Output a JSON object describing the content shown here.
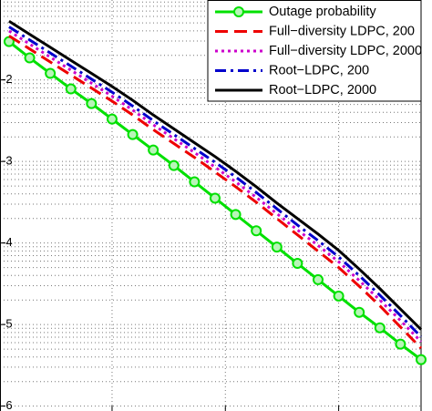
{
  "chart_data": {
    "type": "line",
    "x": [
      0,
      1,
      2,
      3,
      4,
      5,
      6,
      7,
      8,
      9,
      10,
      11,
      12,
      13,
      14,
      15,
      16,
      17,
      18,
      19,
      20
    ],
    "xlim": [
      -0.44,
      20
    ],
    "xticks": [
      5,
      10.5,
      16
    ],
    "ylim": [
      -6.06,
      -1.02
    ],
    "yticks": [
      -2,
      -3,
      -4,
      -5,
      -6
    ],
    "grid": true,
    "minor_grid": true,
    "legend": "upper right",
    "series": [
      {
        "name": "Outage probability",
        "color": "#00e000",
        "dash": "solid",
        "marker": "circle",
        "values": [
          -1.53,
          -1.73,
          -1.92,
          -2.11,
          -2.29,
          -2.48,
          -2.67,
          -2.86,
          -3.05,
          -3.25,
          -3.45,
          -3.65,
          -3.85,
          -4.05,
          -4.25,
          -4.45,
          -4.65,
          -4.85,
          -5.04,
          -5.24,
          -5.43
        ]
      },
      {
        "name": "Full−diversity LDPC, 200",
        "color": "#ee0000",
        "dash": "dashed",
        "values": [
          -1.46,
          -1.62,
          -1.78,
          -1.94,
          -2.1,
          -2.26,
          -2.43,
          -2.61,
          -2.78,
          -2.95,
          -3.13,
          -3.31,
          -3.5,
          -3.7,
          -3.9,
          -4.1,
          -4.3,
          -4.53,
          -4.77,
          -5.03,
          -5.29
        ]
      },
      {
        "name": "Full−diversity LDPC, 2000",
        "color": "#cc00cc",
        "dash": "dotted",
        "values": [
          -1.4,
          -1.56,
          -1.72,
          -1.88,
          -2.04,
          -2.2,
          -2.37,
          -2.55,
          -2.72,
          -2.89,
          -3.07,
          -3.25,
          -3.44,
          -3.64,
          -3.84,
          -4.03,
          -4.23,
          -4.46,
          -4.7,
          -4.95,
          -5.21
        ]
      },
      {
        "name": "Root−LDPC, 200",
        "color": "#0000cc",
        "dash": "dashdot",
        "values": [
          -1.35,
          -1.51,
          -1.67,
          -1.83,
          -1.99,
          -2.15,
          -2.32,
          -2.5,
          -2.67,
          -2.84,
          -3.01,
          -3.19,
          -3.38,
          -3.58,
          -3.78,
          -3.97,
          -4.17,
          -4.4,
          -4.64,
          -4.89,
          -5.15
        ]
      },
      {
        "name": "Root−LDPC, 2000",
        "color": "#000000",
        "dash": "solid",
        "values": [
          -1.28,
          -1.44,
          -1.6,
          -1.76,
          -1.92,
          -2.08,
          -2.25,
          -2.43,
          -2.6,
          -2.77,
          -2.94,
          -3.12,
          -3.31,
          -3.51,
          -3.7,
          -3.89,
          -4.09,
          -4.32,
          -4.56,
          -4.81,
          -5.06
        ]
      }
    ]
  }
}
